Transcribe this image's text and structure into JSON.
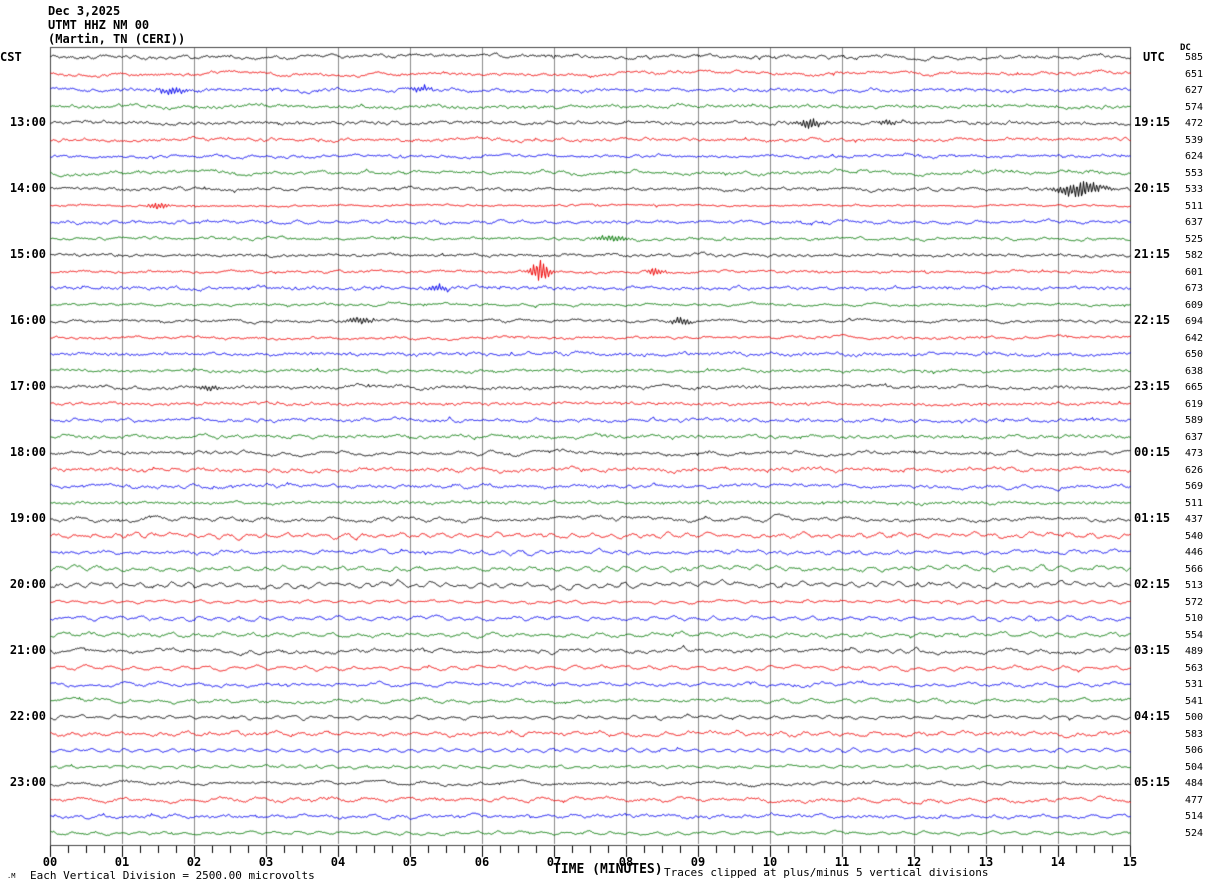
{
  "title": {
    "date": "Dec 3,2025",
    "station": "UTMT HHZ NM 00",
    "location": "(Martin, TN (CERI))"
  },
  "axes": {
    "left_header": "CST",
    "right_header": "UTC",
    "dc_header": "DC",
    "left_hour_labels": [
      "13:00",
      "14:00",
      "15:00",
      "16:00",
      "17:00",
      "18:00",
      "19:00",
      "20:00",
      "21:00",
      "22:00",
      "23:00"
    ],
    "right_hour_labels": [
      "19:15",
      "20:15",
      "21:15",
      "22:15",
      "23:15",
      "00:15",
      "01:15",
      "02:15",
      "03:15",
      "04:15",
      "05:15"
    ],
    "x_tick_labels": [
      "00",
      "01",
      "02",
      "03",
      "04",
      "05",
      "06",
      "07",
      "08",
      "09",
      "10",
      "11",
      "12",
      "13",
      "14",
      "15"
    ],
    "x_axis_title": "TIME (MINUTES)"
  },
  "footer": {
    "logo_mark": ".M",
    "scale_note": "Each Vertical Division = 2500.00 microvolts",
    "clip_note": "Traces clipped at plus/minus 5 vertical divisions"
  },
  "chart_data": {
    "type": "line",
    "subtype": "helicorder-seismogram",
    "title": "UTMT HHZ NM 00 (Martin, TN (CERI)) Dec 3,2025",
    "station_code": "UTMT HHZ NM 00",
    "station_name": "Martin, TN (CERI)",
    "date": "Dec 3,2025",
    "x_range_minutes": [
      0,
      15
    ],
    "minutes_per_row": 15,
    "rows": 48,
    "rows_per_hour": 4,
    "first_row_time_cst": "12:00",
    "first_row_time_utc_end": "18:15",
    "trace_color_cycle": [
      "#000000",
      "#ee0000",
      "#0000ee",
      "#007700"
    ],
    "grid": "vertical gray line each minute, ticks every 15 seconds",
    "legend_position": "none",
    "vertical_division_microvolts": 2500.0,
    "clip_divisions": 5,
    "dc_offsets": [
      585,
      651,
      627,
      574,
      472,
      539,
      624,
      553,
      533,
      511,
      637,
      525,
      582,
      601,
      673,
      609,
      694,
      642,
      650,
      638,
      665,
      619,
      589,
      637,
      473,
      626,
      569,
      511,
      437,
      540,
      446,
      566,
      513,
      572,
      510,
      554,
      489,
      563,
      531,
      541,
      500,
      583,
      506,
      504,
      484,
      477,
      514,
      524
    ],
    "hour_row_labels": {
      "cst_start": [
        "13:00",
        "14:00",
        "15:00",
        "16:00",
        "17:00",
        "18:00",
        "19:00",
        "20:00",
        "21:00",
        "22:00",
        "23:00"
      ],
      "utc_end": [
        "19:15",
        "20:15",
        "21:15",
        "22:15",
        "23:15",
        "00:15",
        "01:15",
        "02:15",
        "03:15",
        "04:15",
        "05:15"
      ]
    },
    "events": [
      {
        "row": 2,
        "row_time_cst": "12:30",
        "minute": 1.7,
        "amp": 4.0,
        "width": 0.15
      },
      {
        "row": 2,
        "row_time_cst": "12:30",
        "minute": 5.15,
        "amp": 3.5,
        "width": 0.12
      },
      {
        "row": 4,
        "row_time_cst": "13:00",
        "minute": 10.55,
        "amp": 5.0,
        "width": 0.12
      },
      {
        "row": 4,
        "row_time_cst": "13:00",
        "minute": 11.65,
        "amp": 3.5,
        "width": 0.1
      },
      {
        "row": 8,
        "row_time_cst": "14:00",
        "minute": 14.3,
        "amp": 9.0,
        "width": 0.22
      },
      {
        "row": 9,
        "row_time_cst": "14:15",
        "minute": 1.5,
        "amp": 4.0,
        "width": 0.1
      },
      {
        "row": 11,
        "row_time_cst": "14:45",
        "minute": 7.8,
        "amp": 4.0,
        "width": 0.15
      },
      {
        "row": 13,
        "row_time_cst": "15:15",
        "minute": 6.8,
        "amp": 12.0,
        "width": 0.09
      },
      {
        "row": 13,
        "row_time_cst": "15:15",
        "minute": 8.4,
        "amp": 4.5,
        "width": 0.08
      },
      {
        "row": 14,
        "row_time_cst": "15:30",
        "minute": 5.4,
        "amp": 4.0,
        "width": 0.1
      },
      {
        "row": 16,
        "row_time_cst": "16:00",
        "minute": 4.3,
        "amp": 4.0,
        "width": 0.12
      },
      {
        "row": 16,
        "row_time_cst": "16:00",
        "minute": 8.75,
        "amp": 4.5,
        "width": 0.1
      },
      {
        "row": 20,
        "row_time_cst": "17:00",
        "minute": 2.2,
        "amp": 3.0,
        "width": 0.1
      }
    ]
  }
}
